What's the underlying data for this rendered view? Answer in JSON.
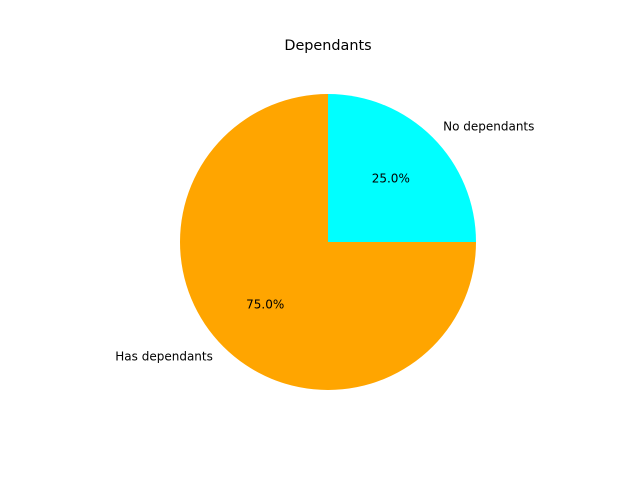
{
  "chart_data": {
    "type": "pie",
    "title": "Dependants",
    "slices": [
      {
        "label": "No dependants",
        "value": 25.0,
        "percent_label": "25.0%",
        "color": "#00ffff"
      },
      {
        "label": "Has dependants",
        "value": 75.0,
        "percent_label": "75.0%",
        "color": "#ffa500"
      }
    ],
    "start_angle_deg": 0,
    "direction": "counterclockwise",
    "legend": "none"
  }
}
